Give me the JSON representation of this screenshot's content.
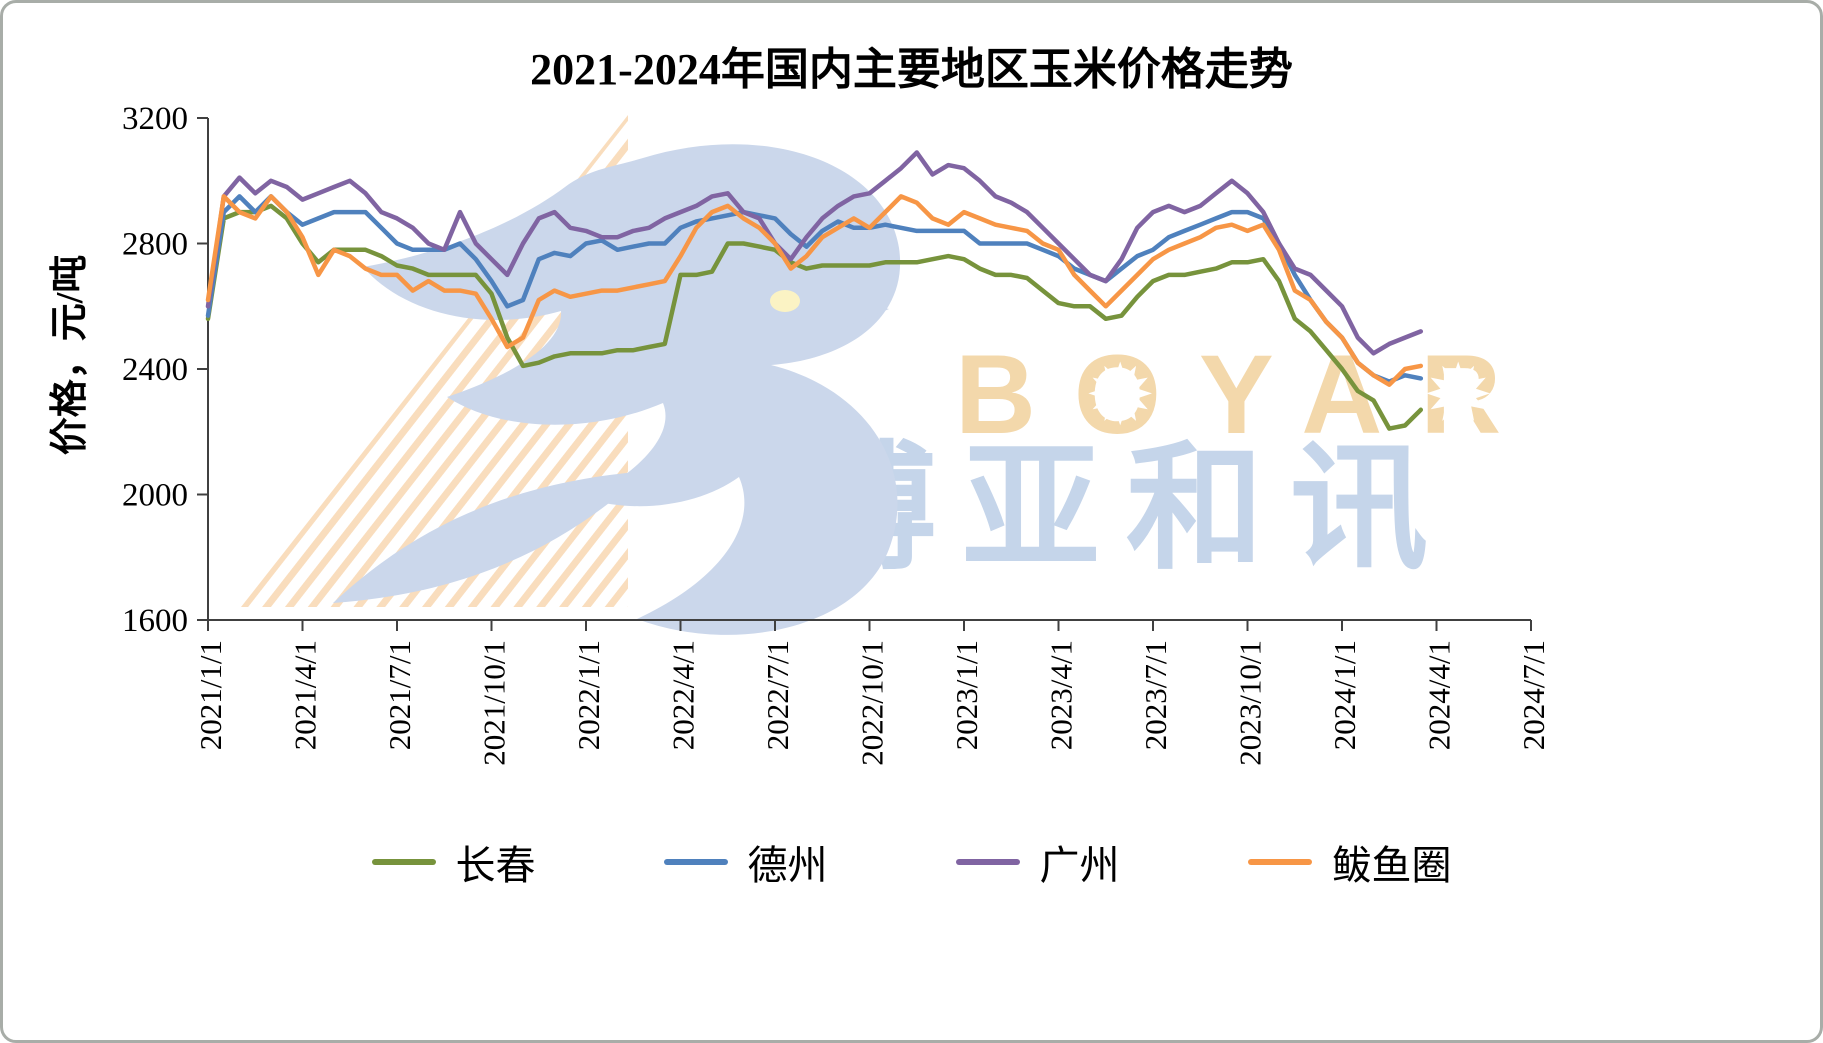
{
  "chart_data": {
    "type": "line",
    "title": "2021-2024年国内主要地区玉米价格走势",
    "ylabel": "价格，元/吨",
    "grid": false,
    "legend_position": "bottom",
    "y_axis": {
      "min": 1600,
      "max": 3200,
      "ticks": [
        1600,
        2000,
        2400,
        2800,
        3200
      ]
    },
    "x_axis": {
      "unit": "months since 2021/1/1",
      "max_months": 42,
      "tick_interval_months": 3,
      "tick_labels": [
        "2021/1/1",
        "2021/4/1",
        "2021/7/1",
        "2021/10/1",
        "2022/1/1",
        "2022/4/1",
        "2022/7/1",
        "2022/10/1",
        "2023/1/1",
        "2023/4/1",
        "2023/7/1",
        "2023/10/1",
        "2024/1/1",
        "2024/4/1",
        "2024/7/1"
      ]
    },
    "x_start_month": 0,
    "x_step_months": 0.5,
    "sampling": "semi-monthly estimated values, 2021/1 through 2024/3",
    "series": [
      {
        "name": "长春",
        "color": "#77933C",
        "values": [
          2560,
          2880,
          2900,
          2900,
          2920,
          2880,
          2800,
          2740,
          2780,
          2780,
          2780,
          2760,
          2730,
          2720,
          2700,
          2700,
          2700,
          2700,
          2640,
          2500,
          2410,
          2420,
          2440,
          2450,
          2450,
          2450,
          2460,
          2460,
          2470,
          2480,
          2700,
          2700,
          2710,
          2800,
          2800,
          2790,
          2780,
          2740,
          2720,
          2730,
          2730,
          2730,
          2730,
          2740,
          2740,
          2740,
          2750,
          2760,
          2750,
          2720,
          2700,
          2700,
          2690,
          2650,
          2610,
          2600,
          2600,
          2560,
          2570,
          2630,
          2680,
          2700,
          2700,
          2710,
          2720,
          2740,
          2740,
          2750,
          2680,
          2560,
          2520,
          2460,
          2400,
          2330,
          2300,
          2210,
          2220,
          2270
        ]
      },
      {
        "name": "德州",
        "color": "#4F81BD",
        "values": [
          2570,
          2900,
          2950,
          2900,
          2950,
          2900,
          2860,
          2880,
          2900,
          2900,
          2900,
          2850,
          2800,
          2780,
          2780,
          2780,
          2800,
          2750,
          2680,
          2600,
          2620,
          2750,
          2770,
          2760,
          2800,
          2810,
          2780,
          2790,
          2800,
          2800,
          2850,
          2870,
          2880,
          2890,
          2900,
          2890,
          2880,
          2830,
          2790,
          2840,
          2870,
          2850,
          2850,
          2860,
          2850,
          2840,
          2840,
          2840,
          2840,
          2800,
          2800,
          2800,
          2800,
          2780,
          2760,
          2720,
          2700,
          2680,
          2720,
          2760,
          2780,
          2820,
          2840,
          2860,
          2880,
          2900,
          2900,
          2880,
          2800,
          2700,
          2620,
          2550,
          2500,
          2420,
          2380,
          2360,
          2380,
          2370
        ]
      },
      {
        "name": "广州",
        "color": "#8064A2",
        "values": [
          2600,
          2950,
          3010,
          2960,
          3000,
          2980,
          2940,
          2960,
          2980,
          3000,
          2960,
          2900,
          2880,
          2850,
          2800,
          2780,
          2900,
          2800,
          2750,
          2700,
          2800,
          2880,
          2900,
          2850,
          2840,
          2820,
          2820,
          2840,
          2850,
          2880,
          2900,
          2920,
          2950,
          2960,
          2900,
          2880,
          2800,
          2750,
          2820,
          2880,
          2920,
          2950,
          2960,
          3000,
          3040,
          3090,
          3020,
          3050,
          3040,
          3000,
          2950,
          2930,
          2900,
          2850,
          2800,
          2750,
          2700,
          2680,
          2750,
          2850,
          2900,
          2920,
          2900,
          2920,
          2960,
          3000,
          2960,
          2900,
          2800,
          2720,
          2700,
          2650,
          2600,
          2500,
          2450,
          2480,
          2500,
          2520
        ]
      },
      {
        "name": "鲅鱼圈",
        "color": "#F79646",
        "values": [
          2620,
          2950,
          2900,
          2880,
          2950,
          2900,
          2820,
          2700,
          2780,
          2760,
          2720,
          2700,
          2700,
          2650,
          2680,
          2650,
          2650,
          2640,
          2560,
          2470,
          2500,
          2620,
          2650,
          2630,
          2640,
          2650,
          2650,
          2660,
          2670,
          2680,
          2760,
          2850,
          2900,
          2920,
          2880,
          2850,
          2800,
          2720,
          2760,
          2820,
          2850,
          2880,
          2850,
          2900,
          2950,
          2930,
          2880,
          2860,
          2900,
          2880,
          2860,
          2850,
          2840,
          2800,
          2780,
          2700,
          2650,
          2600,
          2650,
          2700,
          2750,
          2780,
          2800,
          2820,
          2850,
          2860,
          2840,
          2860,
          2780,
          2650,
          2620,
          2550,
          2500,
          2420,
          2380,
          2350,
          2400,
          2410
        ]
      }
    ]
  },
  "watermark": {
    "brand_latin": "BOYAR",
    "brand_cjk": "博亚和讯",
    "sun_glyph": "✹",
    "colors": {
      "hatch": "#F9DDBD",
      "bird": "#CBD7EB",
      "eye": "#FBF3C4",
      "latin": "#F3D8AB",
      "cjk": "#C5D5EA"
    }
  }
}
